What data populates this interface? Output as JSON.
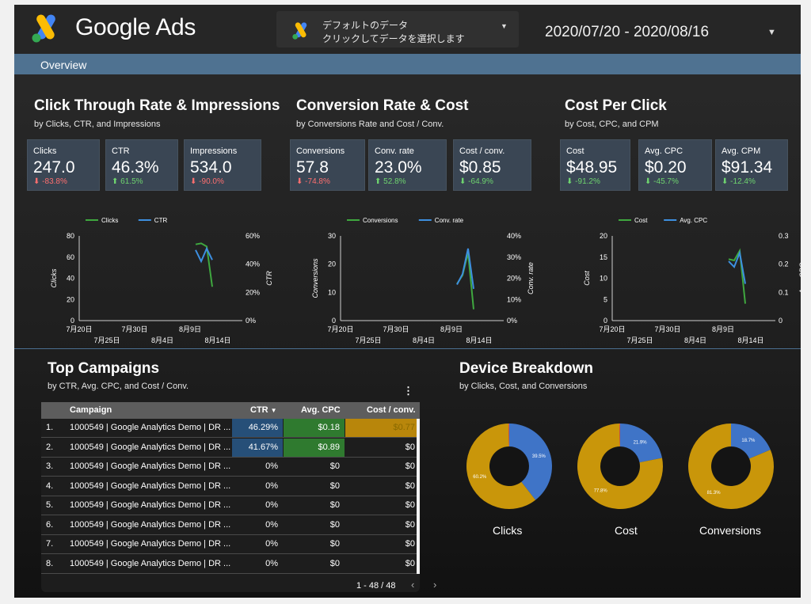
{
  "header": {
    "brand": "Google Ads",
    "datasource_line1": "デフォルトのデータ",
    "datasource_line2": "クリックしてデータを選択します",
    "date_range": "2020/07/20 - 2020/08/16"
  },
  "overview_label": "Overview",
  "sections": {
    "ctr": {
      "title": "Click Through Rate & Impressions",
      "subtitle": "by Clicks, CTR, and Impressions"
    },
    "conv": {
      "title": "Conversion Rate & Cost",
      "subtitle": "by Conversions Rate and Cost / Conv."
    },
    "cpc": {
      "title": "Cost Per Click",
      "subtitle": "by Cost, CPC, and CPM"
    },
    "campaigns": {
      "title": "Top Campaigns",
      "subtitle": "by CTR, Avg. CPC, and Cost / Conv."
    },
    "device": {
      "title": "Device Breakdown",
      "subtitle": "by Clicks, Cost, and Conversions"
    }
  },
  "kpis": [
    {
      "label": "Clicks",
      "value": "247.0",
      "delta": "-83.8%",
      "dir": "down",
      "good": false
    },
    {
      "label": "CTR",
      "value": "46.3%",
      "delta": "61.5%",
      "dir": "up",
      "good": true
    },
    {
      "label": "Impressions",
      "value": "534.0",
      "delta": "-90.0%",
      "dir": "down",
      "good": false
    },
    {
      "label": "Conversions",
      "value": "57.8",
      "delta": "-74.8%",
      "dir": "down",
      "good": false
    },
    {
      "label": "Conv. rate",
      "value": "23.0%",
      "delta": "52.8%",
      "dir": "up",
      "good": true
    },
    {
      "label": "Cost / conv.",
      "value": "$0.85",
      "delta": "-64.9%",
      "dir": "down",
      "good": true
    },
    {
      "label": "Cost",
      "value": "$48.95",
      "delta": "-91.2%",
      "dir": "down",
      "good": true
    },
    {
      "label": "Avg. CPC",
      "value": "$0.20",
      "delta": "-45.7%",
      "dir": "down",
      "good": true
    },
    {
      "label": "Avg. CPM",
      "value": "$91.34",
      "delta": "-12.4%",
      "dir": "down",
      "good": true
    }
  ],
  "colors": {
    "green_series": "#3fa83f",
    "blue_series": "#3d8fe0",
    "donut_blue": "#3f74c7",
    "donut_gold": "#c9960a",
    "ctr_heat": "#264f78",
    "cpc_heat": "#2f7a2f",
    "cost_heat": "#b8860b"
  },
  "chart_data": [
    {
      "type": "line",
      "x_tick_labels_top": [
        "7月20日",
        "7月30日",
        "8月9日"
      ],
      "x_tick_labels_bottom": [
        "7月25日",
        "8月4日",
        "8月14日"
      ],
      "x_days": [
        0,
        28
      ],
      "series": [
        {
          "name": "Clicks",
          "axis": "left",
          "color": "green",
          "points": [
            [
              21,
              72
            ],
            [
              22,
              73
            ],
            [
              23,
              70
            ],
            [
              24,
              32
            ]
          ]
        },
        {
          "name": "CTR",
          "axis": "right",
          "color": "blue",
          "points": [
            [
              21,
              50
            ],
            [
              22,
              42
            ],
            [
              23,
              51
            ],
            [
              24,
              43
            ]
          ]
        }
      ],
      "ylabel": "Clicks",
      "y2label": "CTR",
      "ylim": [
        0,
        80
      ],
      "yticks": [
        "80",
        "60",
        "40",
        "20",
        "0"
      ],
      "y2lim": [
        0,
        60
      ],
      "y2ticks": [
        "60%",
        "40%",
        "20%",
        "0%"
      ]
    },
    {
      "type": "line",
      "x_tick_labels_top": [
        "7月20日",
        "7月30日",
        "8月9日"
      ],
      "x_tick_labels_bottom": [
        "7月25日",
        "8月4日",
        "8月14日"
      ],
      "x_days": [
        0,
        28
      ],
      "series": [
        {
          "name": "Conversions",
          "axis": "left",
          "color": "green",
          "points": [
            [
              21,
              13
            ],
            [
              22,
              16
            ],
            [
              23,
              24
            ],
            [
              24,
              4
            ]
          ]
        },
        {
          "name": "Conv. rate",
          "axis": "right",
          "color": "blue",
          "points": [
            [
              21,
              17
            ],
            [
              22,
              22
            ],
            [
              23,
              34
            ],
            [
              24,
              15
            ]
          ]
        }
      ],
      "ylabel": "Conversions",
      "y2label": "Conv. rate",
      "ylim": [
        0,
        30
      ],
      "yticks": [
        "30",
        "20",
        "10",
        "0"
      ],
      "y2lim": [
        0,
        40
      ],
      "y2ticks": [
        "40%",
        "30%",
        "20%",
        "10%",
        "0%"
      ]
    },
    {
      "type": "line",
      "x_tick_labels_top": [
        "7月20日",
        "7月30日",
        "8月9日"
      ],
      "x_tick_labels_bottom": [
        "7月25日",
        "8月4日",
        "8月14日"
      ],
      "x_days": [
        0,
        28
      ],
      "series": [
        {
          "name": "Cost",
          "axis": "left",
          "color": "green",
          "points": [
            [
              21,
              14.5
            ],
            [
              22,
              14.2
            ],
            [
              23,
              16.5
            ],
            [
              24,
              4
            ]
          ]
        },
        {
          "name": "Avg. CPC",
          "axis": "right",
          "color": "blue",
          "points": [
            [
              21,
              0.21
            ],
            [
              22,
              0.19
            ],
            [
              23,
              0.24
            ],
            [
              24,
              0.13
            ]
          ]
        }
      ],
      "ylabel": "Cost",
      "y2label": "Avg. CPC",
      "ylim": [
        0,
        20
      ],
      "yticks": [
        "20",
        "15",
        "10",
        "5",
        "0"
      ],
      "y2lim": [
        0,
        0.3
      ],
      "y2ticks": [
        "0.3",
        "0.2",
        "0.1",
        "0"
      ]
    },
    {
      "type": "pie",
      "title": "Clicks",
      "slices": [
        {
          "label": "Blue",
          "value": 39.5,
          "display": "39.5%"
        },
        {
          "label": "Gold",
          "value": 60.2,
          "display": "60.2%"
        },
        {
          "label": "Red",
          "value": 0.3,
          "display": ""
        }
      ]
    },
    {
      "type": "pie",
      "title": "Cost",
      "slices": [
        {
          "label": "Blue",
          "value": 21.9,
          "display": "21.9%"
        },
        {
          "label": "Gold",
          "value": 77.8,
          "display": "77.8%"
        },
        {
          "label": "Red",
          "value": 0.3,
          "display": ""
        }
      ]
    },
    {
      "type": "pie",
      "title": "Conversions",
      "slices": [
        {
          "label": "Blue",
          "value": 18.7,
          "display": "18.7%"
        },
        {
          "label": "Gold",
          "value": 81.3,
          "display": "81.3%"
        }
      ]
    }
  ],
  "table": {
    "columns": [
      "Campaign",
      "CTR",
      "Avg. CPC",
      "Cost / conv."
    ],
    "sort_indicator": "▼",
    "rows": [
      {
        "idx": "1.",
        "campaign": "1000549 | Google Analytics Demo | DR ...",
        "ctr": "46.29%",
        "cpc": "$0.18",
        "cost": "$0.77",
        "ctr_level": 1.0,
        "cpc_level": 0.2,
        "cost_level": 1.0
      },
      {
        "idx": "2.",
        "campaign": "1000549 | Google Analytics Demo | DR ...",
        "ctr": "41.67%",
        "cpc": "$0.89",
        "cost": "$0",
        "ctr_level": 0.9,
        "cpc_level": 1.0,
        "cost_level": 0
      },
      {
        "idx": "3.",
        "campaign": "1000549 | Google Analytics Demo | DR ...",
        "ctr": "0%",
        "cpc": "$0",
        "cost": "$0",
        "ctr_level": 0,
        "cpc_level": 0,
        "cost_level": 0
      },
      {
        "idx": "4.",
        "campaign": "1000549 | Google Analytics Demo | DR ...",
        "ctr": "0%",
        "cpc": "$0",
        "cost": "$0",
        "ctr_level": 0,
        "cpc_level": 0,
        "cost_level": 0
      },
      {
        "idx": "5.",
        "campaign": "1000549 | Google Analytics Demo | DR ...",
        "ctr": "0%",
        "cpc": "$0",
        "cost": "$0",
        "ctr_level": 0,
        "cpc_level": 0,
        "cost_level": 0
      },
      {
        "idx": "6.",
        "campaign": "1000549 | Google Analytics Demo | DR ...",
        "ctr": "0%",
        "cpc": "$0",
        "cost": "$0",
        "ctr_level": 0,
        "cpc_level": 0,
        "cost_level": 0
      },
      {
        "idx": "7.",
        "campaign": "1000549 | Google Analytics Demo | DR ...",
        "ctr": "0%",
        "cpc": "$0",
        "cost": "$0",
        "ctr_level": 0,
        "cpc_level": 0,
        "cost_level": 0
      },
      {
        "idx": "8.",
        "campaign": "1000549 | Google Analytics Demo | DR ...",
        "ctr": "0%",
        "cpc": "$0",
        "cost": "$0",
        "ctr_level": 0,
        "cpc_level": 0,
        "cost_level": 0
      }
    ],
    "pager_text": "1 - 48 / 48",
    "prev_icon": "‹",
    "next_icon": "›",
    "menu_icon": "⋮"
  }
}
